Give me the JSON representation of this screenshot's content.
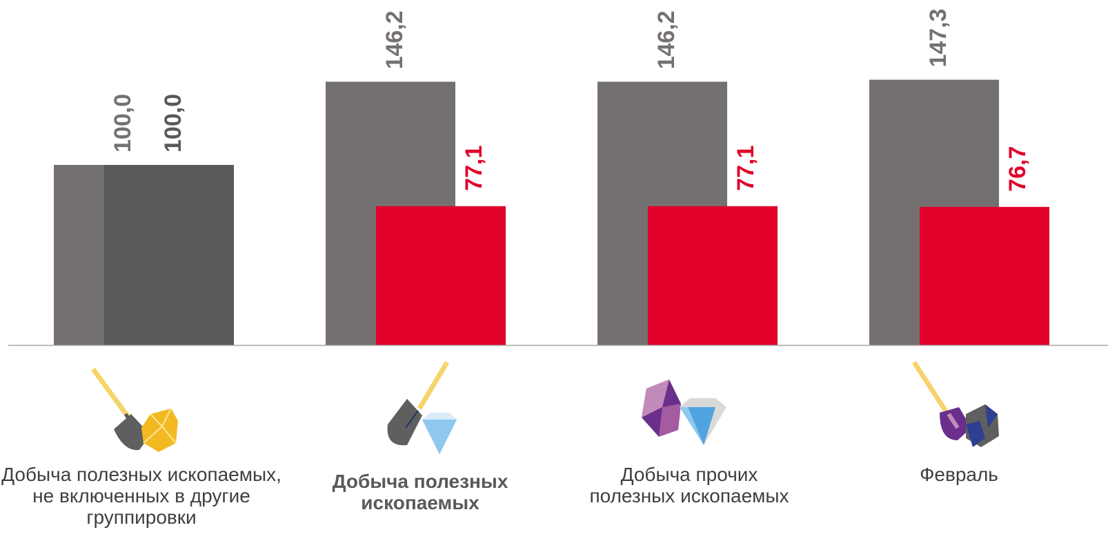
{
  "chart_data": {
    "type": "bar",
    "categories": [
      "Добыча полезных ископаемых, не включенных в другие группировки",
      "Добыча полезных ископаемых",
      "Добыча прочих полезных ископаемых",
      "Февраль"
    ],
    "series": [
      {
        "values": [
          100.0,
          146.2,
          146.2,
          147.3
        ],
        "labels": [
          "100,0",
          "146,2",
          "146,2",
          "147,3"
        ]
      },
      {
        "values": [
          100.0,
          77.1,
          77.1,
          76.7
        ],
        "labels": [
          "100,0",
          "77,1",
          "77,1",
          "76,7"
        ]
      }
    ],
    "ylim": [
      0,
      170
    ],
    "grid": false,
    "legend": "none"
  },
  "colors": {
    "series1": "#757070",
    "series2": "#e0002a",
    "series2_first": "#595959",
    "label_gray": "#767171",
    "label_dark": "#595959",
    "label_red": "#e0002a",
    "axis": "#a6a6a6"
  },
  "icons": [
    "shovel-gold-icon",
    "shovel-diamond-icon",
    "gems-diamond-icon",
    "shovel-purple-gems-icon"
  ]
}
